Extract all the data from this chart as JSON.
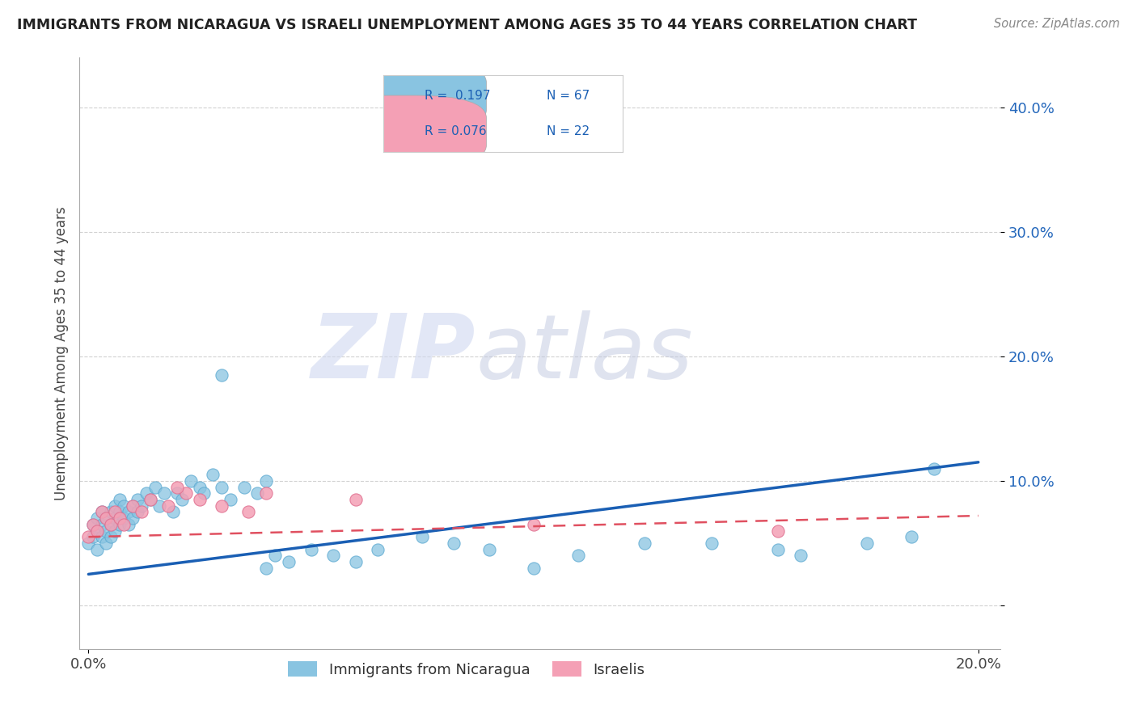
{
  "title": "IMMIGRANTS FROM NICARAGUA VS ISRAELI UNEMPLOYMENT AMONG AGES 35 TO 44 YEARS CORRELATION CHART",
  "source": "Source: ZipAtlas.com",
  "ylabel": "Unemployment Among Ages 35 to 44 years",
  "xlim": [
    -0.002,
    0.205
  ],
  "ylim": [
    -0.035,
    0.44
  ],
  "ytick_vals": [
    0.0,
    0.1,
    0.2,
    0.3,
    0.4
  ],
  "ytick_labels": [
    "",
    "10.0%",
    "20.0%",
    "30.0%",
    "40.0%"
  ],
  "xtick_vals": [
    0.0,
    0.2
  ],
  "xtick_labels": [
    "0.0%",
    "20.0%"
  ],
  "blue_color": "#89c4e1",
  "blue_edge_color": "#5aa8d0",
  "pink_color": "#f4a0b5",
  "pink_edge_color": "#e07090",
  "blue_line_color": "#1a5fb4",
  "pink_line_color": "#e05060",
  "legend_text_color": "#1a5fb4",
  "ylabel_color": "#444444",
  "ytick_color": "#2266bb",
  "xtick_color": "#444444",
  "grid_color": "#cccccc",
  "spine_color": "#aaaaaa",
  "title_color": "#222222",
  "source_color": "#888888",
  "watermark_zip_color": "#d0d8f0",
  "watermark_atlas_color": "#c0c8e0",
  "legend_R1": "R =  0.197",
  "legend_N1": "N = 67",
  "legend_R2": "R = 0.076",
  "legend_N2": "N = 22",
  "legend_label1": "Immigrants from Nicaragua",
  "legend_label2": "Israelis",
  "blue_trend_start": 0.025,
  "blue_trend_end": 0.115,
  "pink_trend_start": 0.055,
  "pink_trend_end": 0.072,
  "blue_x": [
    0.0,
    0.001,
    0.001,
    0.002,
    0.002,
    0.002,
    0.003,
    0.003,
    0.003,
    0.004,
    0.004,
    0.004,
    0.005,
    0.005,
    0.005,
    0.006,
    0.006,
    0.006,
    0.007,
    0.007,
    0.007,
    0.008,
    0.008,
    0.009,
    0.009,
    0.01,
    0.01,
    0.011,
    0.011,
    0.012,
    0.013,
    0.014,
    0.015,
    0.016,
    0.017,
    0.019,
    0.02,
    0.021,
    0.023,
    0.025,
    0.026,
    0.028,
    0.03,
    0.032,
    0.035,
    0.038,
    0.04,
    0.042,
    0.045,
    0.05,
    0.055,
    0.06,
    0.065,
    0.075,
    0.082,
    0.09,
    0.1,
    0.11,
    0.125,
    0.14,
    0.155,
    0.16,
    0.175,
    0.185,
    0.19,
    0.03,
    0.04
  ],
  "blue_y": [
    0.05,
    0.065,
    0.055,
    0.07,
    0.06,
    0.045,
    0.075,
    0.065,
    0.055,
    0.07,
    0.06,
    0.05,
    0.075,
    0.065,
    0.055,
    0.08,
    0.07,
    0.06,
    0.085,
    0.075,
    0.065,
    0.08,
    0.07,
    0.075,
    0.065,
    0.08,
    0.07,
    0.085,
    0.075,
    0.08,
    0.09,
    0.085,
    0.095,
    0.08,
    0.09,
    0.075,
    0.09,
    0.085,
    0.1,
    0.095,
    0.09,
    0.105,
    0.095,
    0.085,
    0.095,
    0.09,
    0.03,
    0.04,
    0.035,
    0.045,
    0.04,
    0.035,
    0.045,
    0.055,
    0.05,
    0.045,
    0.03,
    0.04,
    0.05,
    0.05,
    0.045,
    0.04,
    0.05,
    0.055,
    0.11,
    0.185,
    0.1
  ],
  "pink_x": [
    0.0,
    0.001,
    0.002,
    0.003,
    0.004,
    0.005,
    0.006,
    0.007,
    0.008,
    0.01,
    0.012,
    0.014,
    0.018,
    0.022,
    0.025,
    0.03,
    0.036,
    0.04,
    0.06,
    0.1,
    0.155,
    0.02
  ],
  "pink_y": [
    0.055,
    0.065,
    0.06,
    0.075,
    0.07,
    0.065,
    0.075,
    0.07,
    0.065,
    0.08,
    0.075,
    0.085,
    0.08,
    0.09,
    0.085,
    0.08,
    0.075,
    0.09,
    0.085,
    0.065,
    0.06,
    0.095
  ]
}
